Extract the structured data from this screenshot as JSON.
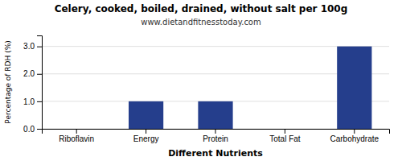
{
  "chart_data": {
    "type": "bar",
    "title": "Celery, cooked, boiled, drained, without salt per 100g",
    "subtitle": "www.dietandfitnesstoday.com",
    "xlabel": "Different Nutrients",
    "ylabel": "Percentage of RDH (%)",
    "categories": [
      "Riboflavin",
      "Energy",
      "Protein",
      "Total Fat",
      "Carbohydrate"
    ],
    "values": [
      0.0,
      1.0,
      1.0,
      0.0,
      3.0
    ],
    "color": "#253e8c",
    "ylim": [
      0,
      3.4
    ],
    "yticks": [
      {
        "value": 0.0,
        "label": "0.0"
      },
      {
        "value": 1.0,
        "label": "1.0"
      },
      {
        "value": 2.0,
        "label": "2.0"
      },
      {
        "value": 3.0,
        "label": "3.0"
      }
    ],
    "grid": true
  }
}
